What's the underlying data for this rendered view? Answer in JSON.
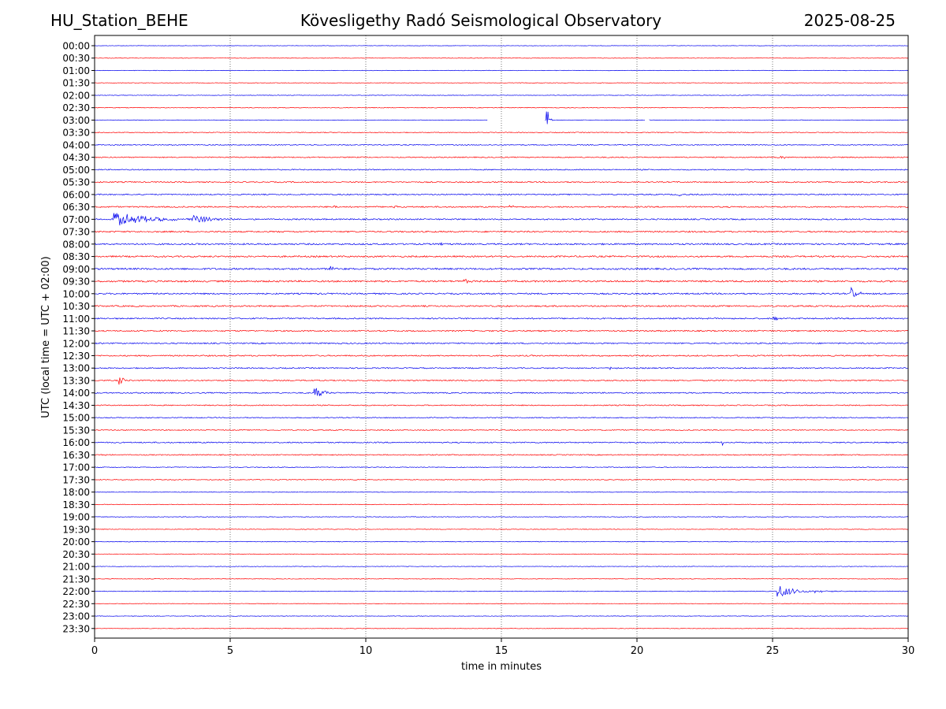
{
  "header": {
    "station": "HU_Station_BEHE",
    "title": "Kövesligethy Radó Seismological Observatory",
    "date": "2025-08-25"
  },
  "colors": {
    "even_trace": "#0000ee",
    "odd_trace": "#ff0000",
    "axes": "#000000",
    "grid": "#555555"
  },
  "chart_data": {
    "type": "line",
    "subtype": "helicorder",
    "xlabel": "time in minutes",
    "ylabel": "UTC (local time = UTC + 02:00)",
    "xlim": [
      0,
      30
    ],
    "x_ticks": [
      0,
      5,
      10,
      15,
      20,
      25,
      30
    ],
    "grid": "vertical dotted lines at 5-minute ticks",
    "row_labels": [
      "00:00",
      "00:30",
      "01:00",
      "01:30",
      "02:00",
      "02:30",
      "03:00",
      "03:30",
      "04:00",
      "04:30",
      "05:00",
      "05:30",
      "06:00",
      "06:30",
      "07:00",
      "07:30",
      "08:00",
      "08:30",
      "09:00",
      "09:30",
      "10:00",
      "10:30",
      "11:00",
      "11:30",
      "12:00",
      "12:30",
      "13:00",
      "13:30",
      "14:00",
      "14:30",
      "15:00",
      "15:30",
      "16:00",
      "16:30",
      "17:00",
      "17:30",
      "18:00",
      "18:30",
      "19:00",
      "19:30",
      "20:00",
      "20:30",
      "21:00",
      "21:30",
      "22:00",
      "22:30",
      "23:00",
      "23:30"
    ],
    "traces": [
      {
        "row": 0,
        "noise": 0.15
      },
      {
        "row": 1,
        "noise": 0.2
      },
      {
        "row": 2,
        "noise": 0.2
      },
      {
        "row": 3,
        "noise": 0.2
      },
      {
        "row": 4,
        "noise": 0.2
      },
      {
        "row": 5,
        "noise": 0.25
      },
      {
        "row": 6,
        "noise": 0.2,
        "gaps": [
          [
            14.5,
            16.6
          ],
          [
            20.3,
            20.45
          ]
        ],
        "events": [
          {
            "t": 16.65,
            "amp": 7.5,
            "dur": 0.25
          },
          {
            "t": 20.4,
            "amp": 1.2,
            "dur": 0.1
          }
        ]
      },
      {
        "row": 7,
        "noise": 0.3
      },
      {
        "row": 8,
        "noise": 0.35
      },
      {
        "row": 9,
        "noise": 0.4,
        "events": [
          {
            "t": 25.3,
            "amp": 1.2,
            "dur": 0.3
          }
        ]
      },
      {
        "row": 10,
        "noise": 0.4
      },
      {
        "row": 11,
        "noise": 0.45
      },
      {
        "row": 12,
        "noise": 0.45,
        "events": [
          {
            "t": 21.5,
            "amp": 0.8,
            "dur": 0.4
          }
        ]
      },
      {
        "row": 13,
        "noise": 0.5,
        "events": [
          {
            "t": 8.8,
            "amp": 0.9,
            "dur": 0.4
          },
          {
            "t": 11.0,
            "amp": 1.0,
            "dur": 0.6
          },
          {
            "t": 15.3,
            "amp": 0.9,
            "dur": 0.4
          }
        ]
      },
      {
        "row": 14,
        "noise": 0.5,
        "events": [
          {
            "t": 0.7,
            "amp": 3.0,
            "dur": 3.3
          },
          {
            "t": 3.6,
            "amp": 2.0,
            "dur": 2.0
          }
        ]
      },
      {
        "row": 15,
        "noise": 0.55
      },
      {
        "row": 16,
        "noise": 0.6,
        "events": [
          {
            "t": 12.6,
            "amp": 0.8,
            "dur": 0.5
          }
        ]
      },
      {
        "row": 17,
        "noise": 0.6
      },
      {
        "row": 18,
        "noise": 0.65,
        "events": [
          {
            "t": 8.7,
            "amp": 1.5,
            "dur": 0.5
          }
        ]
      },
      {
        "row": 19,
        "noise": 0.65,
        "events": [
          {
            "t": 13.6,
            "amp": 1.0,
            "dur": 0.5
          }
        ]
      },
      {
        "row": 20,
        "noise": 0.55,
        "events": [
          {
            "t": 27.85,
            "amp": 3.2,
            "dur": 0.6
          }
        ]
      },
      {
        "row": 21,
        "noise": 0.55
      },
      {
        "row": 22,
        "noise": 0.5,
        "events": [
          {
            "t": 25.0,
            "amp": 1.0,
            "dur": 0.7
          }
        ]
      },
      {
        "row": 23,
        "noise": 0.5
      },
      {
        "row": 24,
        "noise": 0.5
      },
      {
        "row": 25,
        "noise": 0.5
      },
      {
        "row": 26,
        "noise": 0.45,
        "events": [
          {
            "t": 12.2,
            "amp": 0.6,
            "dur": 0.2
          },
          {
            "t": 19.0,
            "amp": 0.7,
            "dur": 0.5
          }
        ]
      },
      {
        "row": 27,
        "noise": 0.45,
        "events": [
          {
            "t": 0.9,
            "amp": 2.0,
            "dur": 0.5
          }
        ]
      },
      {
        "row": 28,
        "noise": 0.45,
        "events": [
          {
            "t": 8.1,
            "amp": 2.5,
            "dur": 0.9
          }
        ]
      },
      {
        "row": 29,
        "noise": 0.4
      },
      {
        "row": 30,
        "noise": 0.35
      },
      {
        "row": 31,
        "noise": 0.35
      },
      {
        "row": 32,
        "noise": 0.45,
        "events": [
          {
            "t": 23.15,
            "amp": 1.2,
            "dur": 0.2
          }
        ]
      },
      {
        "row": 33,
        "noise": 0.4,
        "events": [
          {
            "t": 0.2,
            "amp": 0.6,
            "dur": 0.4
          }
        ]
      },
      {
        "row": 34,
        "noise": 0.3
      },
      {
        "row": 35,
        "noise": 0.3
      },
      {
        "row": 36,
        "noise": 0.25
      },
      {
        "row": 37,
        "noise": 0.25
      },
      {
        "row": 38,
        "noise": 0.25
      },
      {
        "row": 39,
        "noise": 0.25
      },
      {
        "row": 40,
        "noise": 0.25
      },
      {
        "row": 41,
        "noise": 0.2
      },
      {
        "row": 42,
        "noise": 0.2
      },
      {
        "row": 43,
        "noise": 0.2
      },
      {
        "row": 44,
        "noise": 0.25,
        "events": [
          {
            "t": 25.15,
            "amp": 3.0,
            "dur": 1.6
          },
          {
            "t": 26.5,
            "amp": 0.6,
            "dur": 2.0
          }
        ]
      },
      {
        "row": 45,
        "noise": 0.2
      },
      {
        "row": 46,
        "noise": 0.2
      },
      {
        "row": 47,
        "noise": 0.2
      }
    ]
  }
}
